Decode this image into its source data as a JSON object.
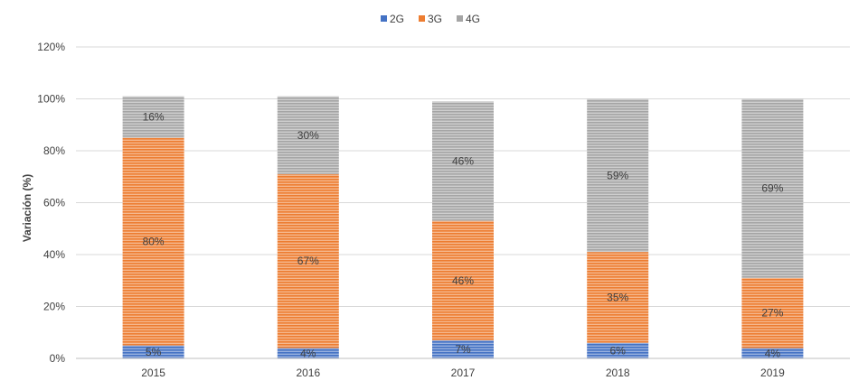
{
  "chart_data": {
    "type": "bar",
    "stacked": true,
    "categories": [
      "2015",
      "2016",
      "2017",
      "2018",
      "2019"
    ],
    "series": [
      {
        "name": "2G",
        "color": "#4472C4",
        "values": [
          5,
          4,
          7,
          6,
          4
        ],
        "labels": [
          "5%",
          "4%",
          "7%",
          "6%",
          "4%"
        ]
      },
      {
        "name": "3G",
        "color": "#ED7D31",
        "values": [
          80,
          67,
          46,
          35,
          27
        ],
        "labels": [
          "80%",
          "67%",
          "46%",
          "35%",
          "27%"
        ]
      },
      {
        "name": "4G",
        "color": "#A5A5A5",
        "values": [
          16,
          30,
          46,
          59,
          69
        ],
        "labels": [
          "16%",
          "30%",
          "46%",
          "59%",
          "69%"
        ]
      }
    ],
    "xlabel": "",
    "ylabel": "Variación (%)",
    "ylim": [
      0,
      120
    ],
    "yticks": [
      0,
      20,
      40,
      60,
      80,
      100,
      120
    ],
    "ytick_labels": [
      "0%",
      "20%",
      "40%",
      "60%",
      "80%",
      "100%",
      "120%"
    ],
    "grid": true,
    "legend_position": "top-center"
  }
}
